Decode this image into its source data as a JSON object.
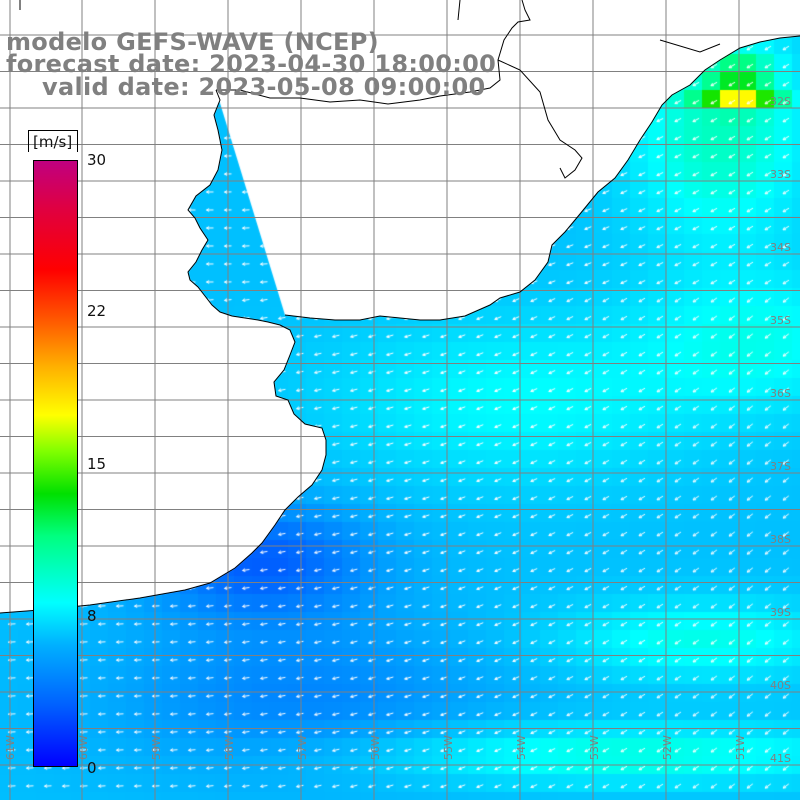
{
  "title": {
    "line1": "modelo GEFS-WAVE (NCEP)",
    "line2": "forecast date: 2023-04-30 18:00:00",
    "line3": "valid date: 2023-05-08 09:00:00"
  },
  "colorbar": {
    "unit": "[m/s]",
    "ticks": [
      "30",
      "22",
      "15",
      "8",
      "0"
    ],
    "range": [
      0,
      30
    ],
    "colors": [
      "#0000ff",
      "#00a0ff",
      "#00ffff",
      "#00e000",
      "#ffff00",
      "#ff8000",
      "#ff0000",
      "#c00080"
    ]
  },
  "lat_labels": [
    "32S",
    "33S",
    "34S",
    "35S",
    "36S",
    "37S",
    "38S",
    "39S",
    "40S",
    "41S"
  ],
  "lon_labels": [
    "61W",
    "60W",
    "59W",
    "58W",
    "57W",
    "56W",
    "55W",
    "54W",
    "53W",
    "52W",
    "51W"
  ],
  "colors": {
    "title": "#808080",
    "land": "#ffffff",
    "coast": "#000000",
    "grid": "#808080",
    "arrow": "#ffffff"
  },
  "variable": "wind speed and direction"
}
